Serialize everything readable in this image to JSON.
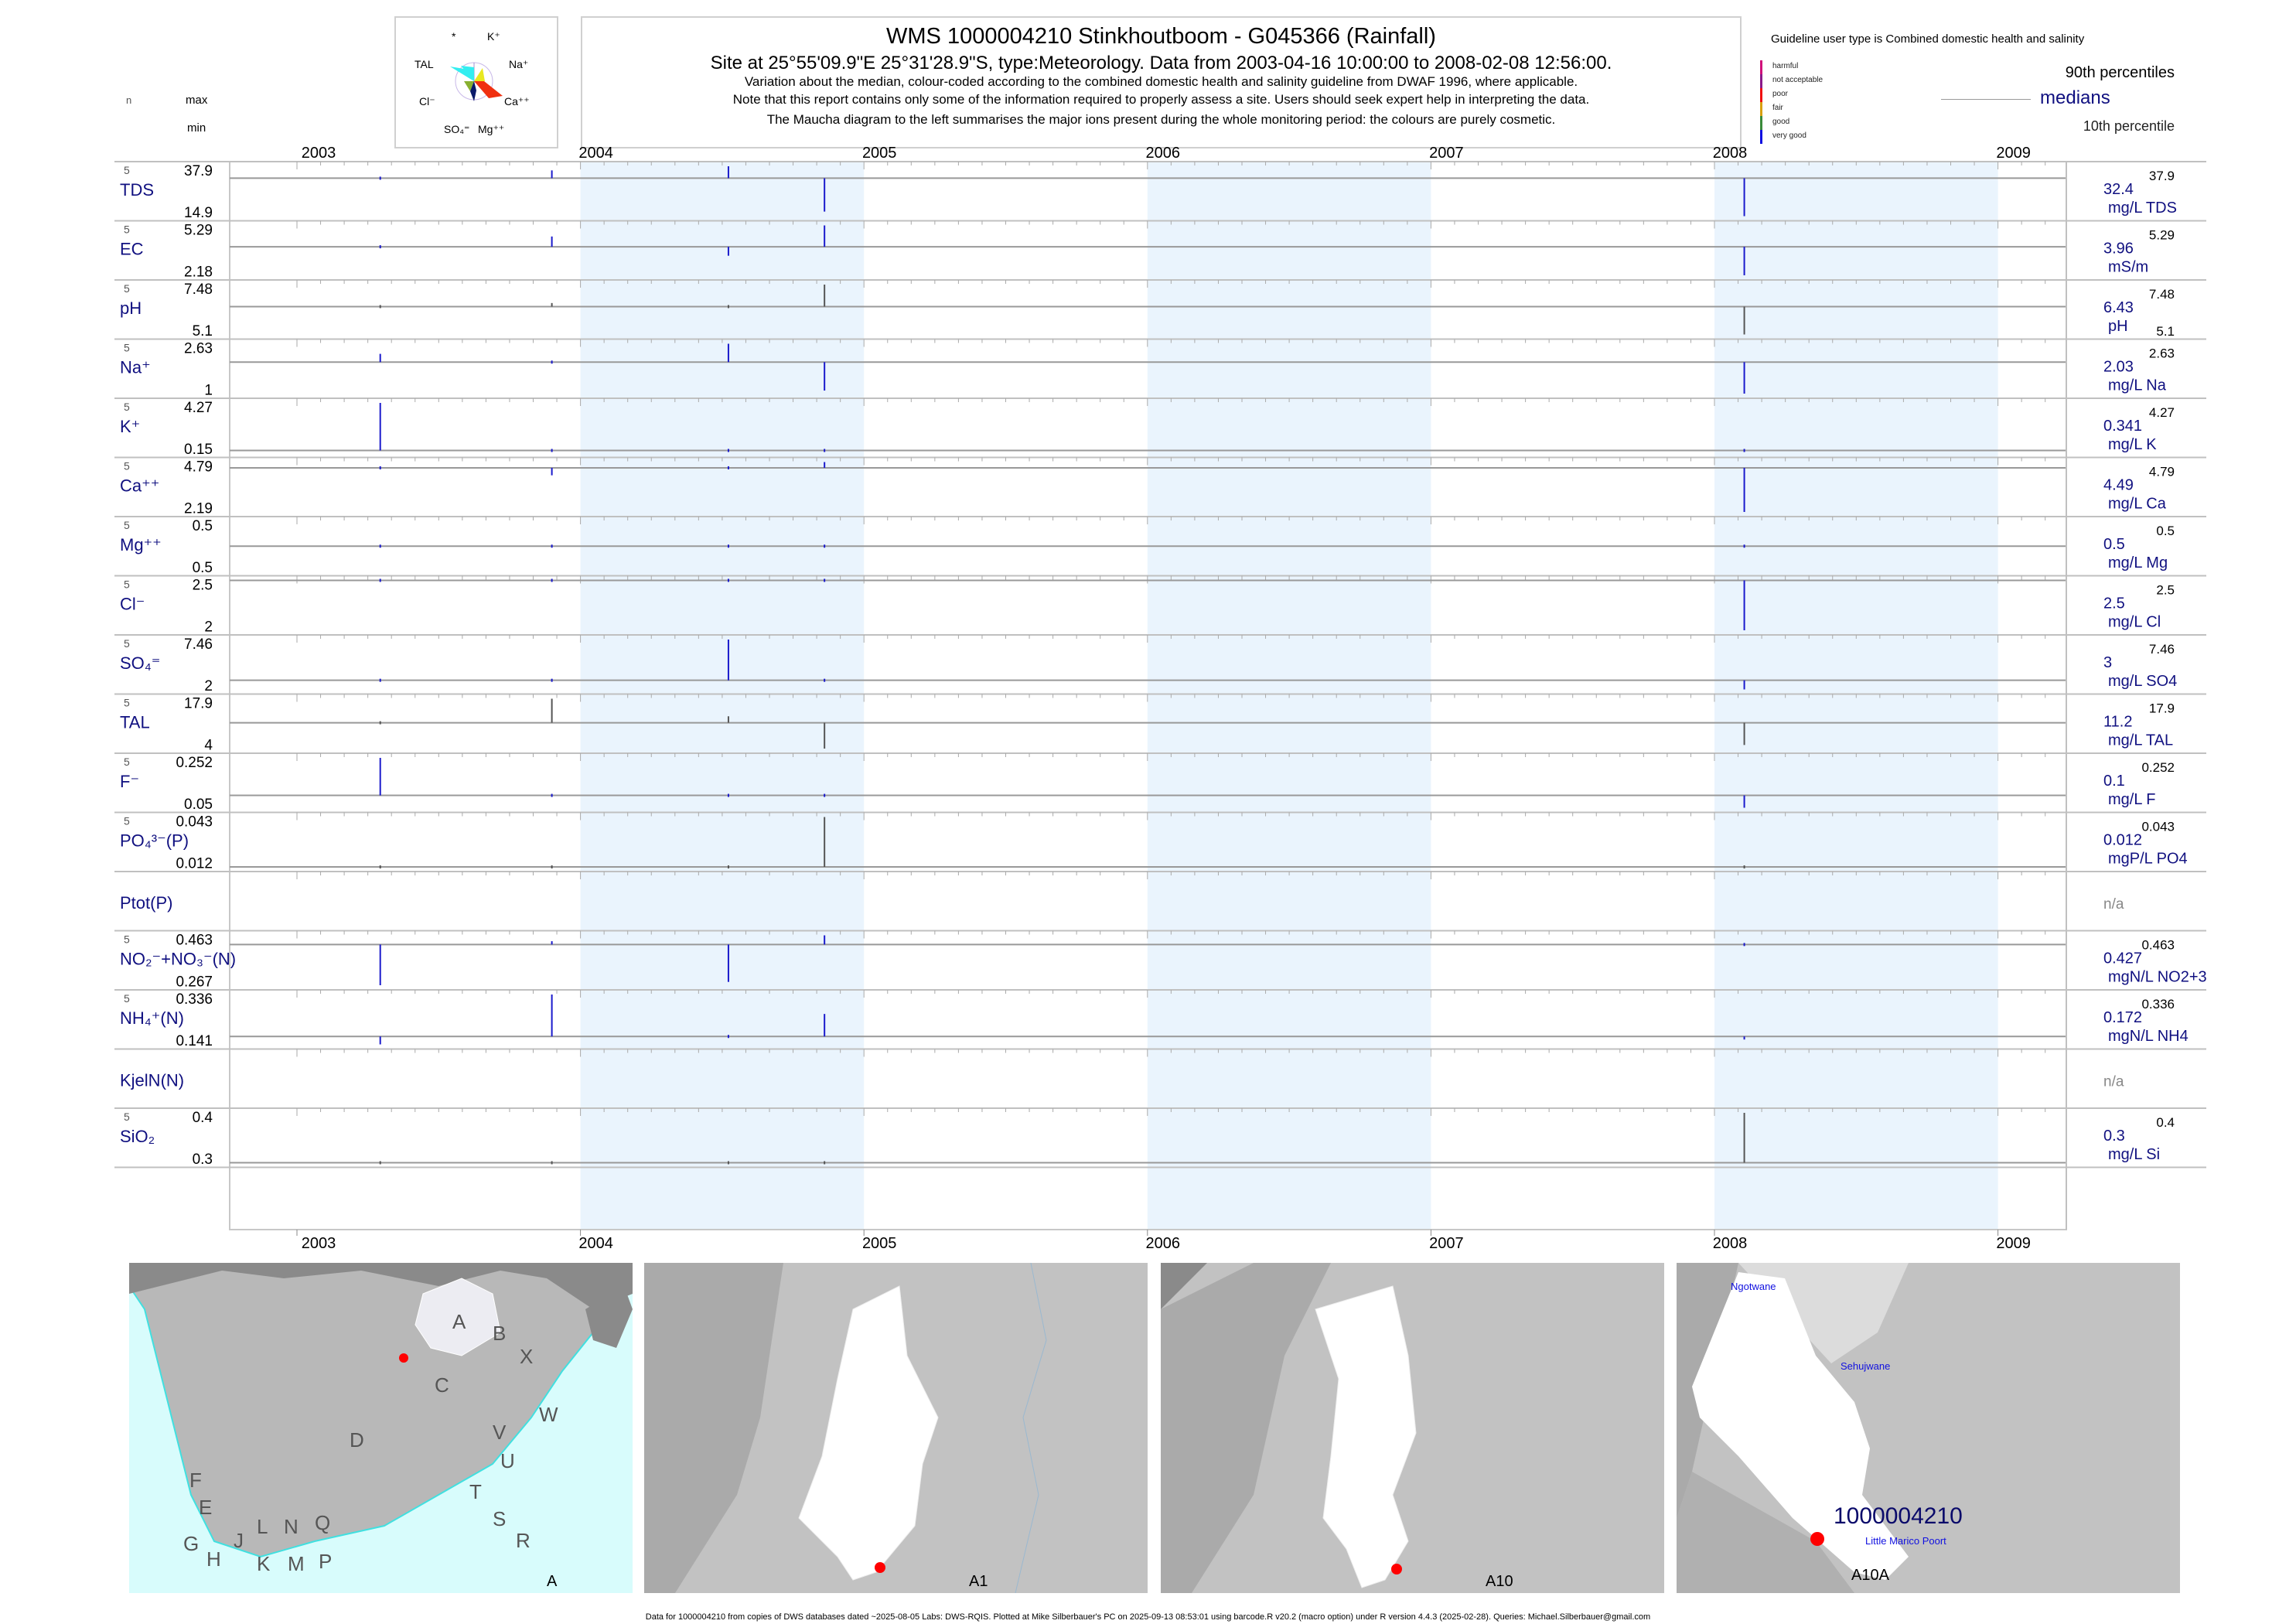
{
  "header": {
    "title": "WMS 1000004210  Stinkhoutboom - G045366 (Rainfall)",
    "site_line": "Site at 25°55'09.9\"E 25°31'28.9\"S, type:Meteorology.  Data from 2003-04-16 10:00:00 to 2008-02-08 12:56:00.",
    "variation_note": "Variation about the median,  colour-coded according to the combined domestic health and salinity guideline from DWAF 1996, where applicable.",
    "assess_note": "Note that this report contains only some of the information required to properly assess a site. Users should seek expert help in interpreting the data.",
    "maucha_note": "The Maucha diagram to the left summarises the major ions present during the whole monitoring period: the colours are purely cosmetic."
  },
  "maucha": {
    "labels": {
      "star": "*",
      "k": "K⁺",
      "tal": "TAL",
      "na": "Na⁺",
      "cl": "Cl⁻",
      "ca": "Ca⁺⁺",
      "so4": "SO₄⁼",
      "mg": "Mg⁺⁺"
    },
    "colors": {
      "tal": "#33eef0",
      "na": "#e8e820",
      "ca": "#f03010",
      "cl": "#88b030",
      "so4": "#0a1a6a"
    }
  },
  "column_headers": {
    "n": "n",
    "max": "max",
    "min": "min"
  },
  "guideline": {
    "title": "Guideline user type is Combined domestic health and salinity",
    "levels": [
      {
        "label": "harmful",
        "color": "#d0107a"
      },
      {
        "label": "not acceptable",
        "color": "#8a1a8a"
      },
      {
        "label": "poor",
        "color": "#f01010"
      },
      {
        "label": "fair",
        "color": "#d8a010"
      },
      {
        "label": "good",
        "color": "#3a8a3a"
      },
      {
        "label": "very good",
        "color": "#1010e0"
      }
    ]
  },
  "percentile_legend": {
    "p90": "90th percentiles",
    "median": "medians",
    "p10": "10th percentile"
  },
  "chart_data": {
    "type": "bar",
    "title": "WMS 1000004210  Stinkhoutboom - G045366 (Rainfall)",
    "x_ticks": [
      "2003",
      "2004",
      "2005",
      "2006",
      "2007",
      "2008",
      "2009"
    ],
    "xlim": [
      2002.75,
      2009.24
    ],
    "shaded_years": [
      2004,
      2006,
      2008
    ],
    "shade_color": "#eaf4fd",
    "sample_dates": [
      "2003-04-16",
      "2003-11-24",
      "2004-07-08",
      "2004-11-10",
      "2008-02-08"
    ],
    "colors": {
      "very_good": "#1a1acc",
      "no_guideline": "#555555"
    },
    "rows": [
      {
        "name": "TDS",
        "n": "5",
        "max": "37.9",
        "min": "14.9",
        "median": "32.4",
        "p90": "37.9",
        "unit": "mg/L TDS",
        "color": "very_good",
        "values": [
          32.4,
          36,
          37.9,
          17,
          14.9
        ]
      },
      {
        "name": "EC",
        "n": "5",
        "max": "5.29",
        "min": "2.18",
        "median": "3.96",
        "p90": "5.29",
        "unit": "mS/m",
        "color": "very_good",
        "values": [
          3.96,
          4.6,
          3.4,
          5.29,
          2.18
        ]
      },
      {
        "name": "pH",
        "n": "5",
        "max": "7.48",
        "min": "5.1",
        "median": "6.43",
        "p90": "7.48",
        "p10": "5.1",
        "unit": "pH",
        "color": "no_guideline",
        "values": [
          6.43,
          6.6,
          6.4,
          7.48,
          5.1
        ]
      },
      {
        "name": "Na⁺",
        "n": "5",
        "max": "2.63",
        "min": "1",
        "median": "2.03",
        "p90": "2.63",
        "unit": "mg/L Na",
        "color": "very_good",
        "values": [
          2.3,
          2.03,
          2.63,
          1.1,
          1
        ]
      },
      {
        "name": "K⁺",
        "n": "5",
        "max": "4.27",
        "min": "0.15",
        "median": "0.341",
        "p90": "4.27",
        "unit": "mg/L K",
        "color": "very_good",
        "values": [
          4.27,
          0.341,
          0.38,
          0.3,
          0.15
        ]
      },
      {
        "name": "Ca⁺⁺",
        "n": "5",
        "max": "4.79",
        "min": "2.19",
        "median": "4.49",
        "p90": "4.79",
        "unit": "mg/L Ca",
        "color": "very_good",
        "values": [
          4.49,
          4.1,
          4.6,
          4.79,
          2.19
        ]
      },
      {
        "name": "Mg⁺⁺",
        "n": "5",
        "max": "0.5",
        "min": "0.5",
        "median": "0.5",
        "p90": "0.5",
        "unit": "mg/L Mg",
        "color": "very_good",
        "values": [
          0.5,
          0.5,
          0.5,
          0.5,
          0.5
        ]
      },
      {
        "name": "Cl⁻",
        "n": "5",
        "max": "2.5",
        "min": "2",
        "median": "2.5",
        "p90": "2.5",
        "unit": "mg/L Cl",
        "color": "very_good",
        "values": [
          2.5,
          2.5,
          2.5,
          2.5,
          2
        ]
      },
      {
        "name": "SO₄⁼",
        "n": "5",
        "max": "7.46",
        "min": "2",
        "median": "3",
        "p90": "7.46",
        "unit": "mg/L SO4",
        "color": "very_good",
        "values": [
          3,
          3,
          7.46,
          3,
          2
        ]
      },
      {
        "name": "TAL",
        "n": "5",
        "max": "17.9",
        "min": "4",
        "median": "11.2",
        "p90": "17.9",
        "unit": "mg/L TAL",
        "color": "no_guideline",
        "values": [
          11.2,
          17.9,
          13,
          4,
          5
        ]
      },
      {
        "name": "F⁻",
        "n": "5",
        "max": "0.252",
        "min": "0.05",
        "median": "0.1",
        "p90": "0.252",
        "unit": "mg/L F",
        "color": "very_good",
        "values": [
          0.252,
          0.1,
          0.1,
          0.1,
          0.05
        ]
      },
      {
        "name": "PO₄³⁻(P)",
        "n": "5",
        "max": "0.043",
        "min": "0.012",
        "median": "0.012",
        "p90": "0.043",
        "unit": "mgP/L PO4",
        "color": "no_guideline",
        "values": [
          0.012,
          0.012,
          0.012,
          0.043,
          0.012
        ]
      },
      {
        "name": "Ptot(P)",
        "na": "n/a"
      },
      {
        "name": "NO₂⁻+NO₃⁻(N)",
        "n": "5",
        "max": "0.463",
        "min": "0.267",
        "median": "0.427",
        "p90": "0.463",
        "unit": "mgN/L NO2+3",
        "color": "very_good",
        "values": [
          0.267,
          0.44,
          0.28,
          0.463,
          0.427
        ]
      },
      {
        "name": "NH₄⁺(N)",
        "n": "5",
        "max": "0.336",
        "min": "0.141",
        "median": "0.172",
        "p90": "0.336",
        "unit": "mgN/L NH4",
        "color": "very_good",
        "values": [
          0.141,
          0.336,
          0.172,
          0.26,
          0.16
        ]
      },
      {
        "name": "KjelN(N)",
        "na": "n/a"
      },
      {
        "name": "SiO₂",
        "n": "5",
        "max": "0.4",
        "min": "0.3",
        "median": "0.3",
        "p90": "0.4",
        "unit": "mg/L Si",
        "color": "no_guideline",
        "values": [
          0.3,
          0.3,
          0.3,
          0.3,
          0.4
        ]
      }
    ]
  },
  "maps": {
    "panels": [
      "A",
      "A1",
      "A10",
      "A10A"
    ],
    "region_letters": [
      "A",
      "B",
      "X",
      "C",
      "W",
      "D",
      "V",
      "U",
      "F",
      "T",
      "E",
      "S",
      "R",
      "G",
      "H",
      "J",
      "L",
      "N",
      "K",
      "M",
      "P",
      "Q"
    ],
    "site_label": "1000004210",
    "places": [
      "Ngotwane",
      "Sehujwane",
      "Little Marico Poort"
    ]
  },
  "footer": "Data for 1000004210 from copies of DWS databases dated ~2025-08-05 Labs: DWS-RQIS. Plotted at Mike Silberbauer's PC on 2025-09-13 08:53:01 using barcode.R v20.2 (macro option) under R version 4.4.3 (2025-02-28). Queries: Michael.Silberbauer@gmail.com"
}
